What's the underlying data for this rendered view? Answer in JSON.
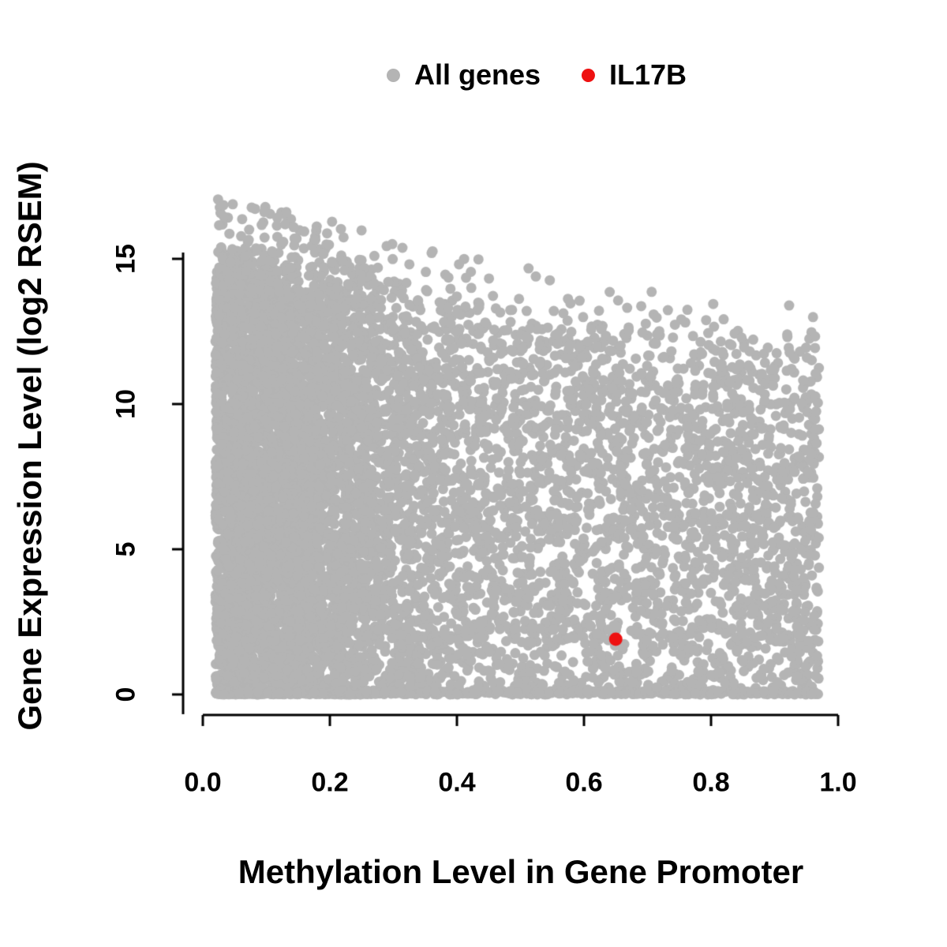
{
  "legend": {
    "items": [
      {
        "label": "All genes",
        "color": "#b4b4b4"
      },
      {
        "label": "IL17B",
        "color": "#ee1111"
      }
    ]
  },
  "chart_data": {
    "type": "scatter",
    "title": "",
    "xlabel": "Methylation Level in Gene Promoter",
    "ylabel": "Gene Expression Level (log2 RSEM)",
    "xlim": [
      0,
      1
    ],
    "ylim": [
      0,
      15
    ],
    "x_ticks": [
      0.0,
      0.2,
      0.4,
      0.6,
      0.8,
      1.0
    ],
    "x_tick_labels": [
      "0.0",
      "0.2",
      "0.4",
      "0.6",
      "0.8",
      "1.0"
    ],
    "y_ticks": [
      0,
      5,
      10,
      15
    ],
    "y_tick_labels": [
      "0",
      "5",
      "10",
      "15"
    ],
    "grid": false,
    "legend_position": "top-center",
    "series": [
      {
        "name": "All genes",
        "color": "#b4b4b4",
        "type": "dense-cloud",
        "n_points": 9000,
        "x_range": [
          0.02,
          0.97
        ],
        "envelope": {
          "y_at_x0": 15.0,
          "y_at_x1": 11.2
        },
        "y_max_outlier": 17.3,
        "seed": 42
      },
      {
        "name": "IL17B",
        "color": "#ee1111",
        "points": [
          [
            0.65,
            1.9
          ]
        ]
      }
    ],
    "highlight_point": {
      "label": "IL17B",
      "x": 0.65,
      "y": 1.9
    }
  }
}
